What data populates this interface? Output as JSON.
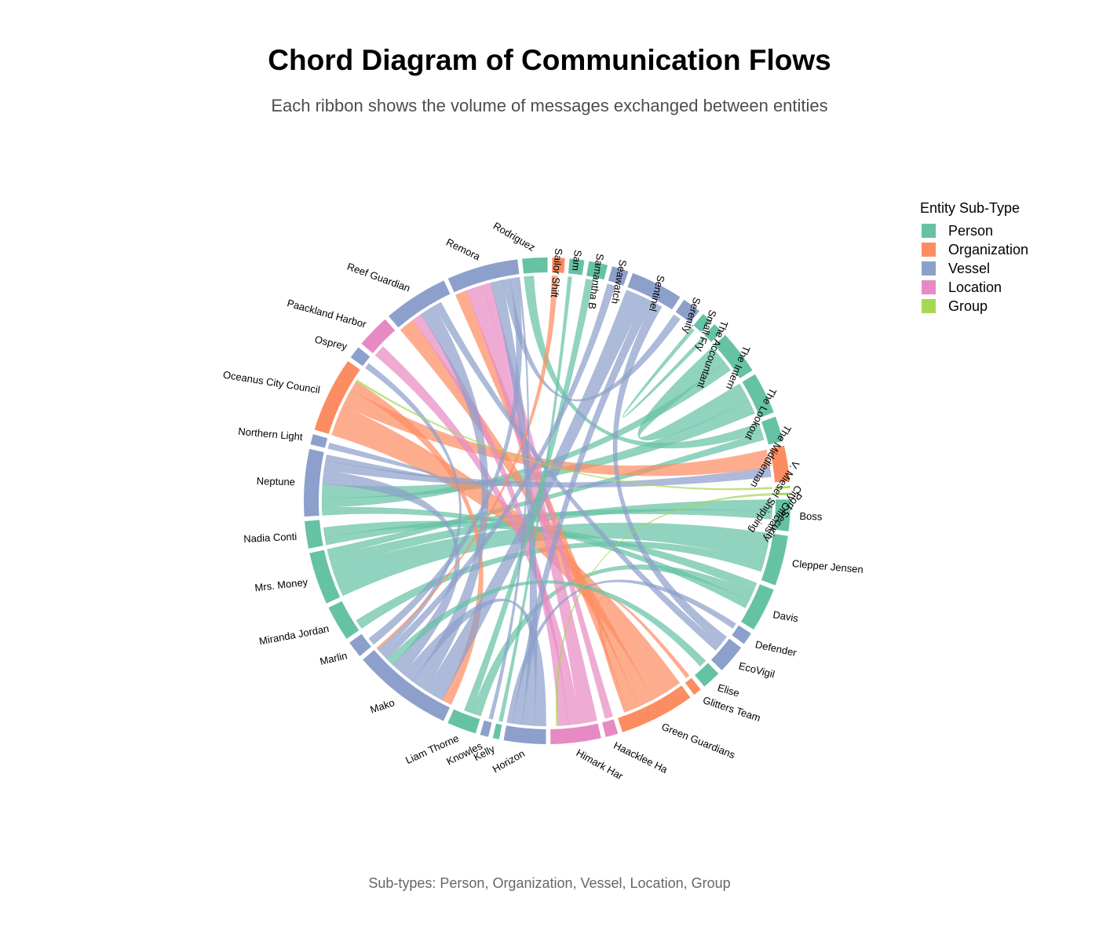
{
  "title": "Chord Diagram of Communication Flows",
  "subtitle": "Each ribbon shows the volume of messages exchanged between entities",
  "caption": "Sub-types: Person, Organization, Vessel, Location, Group",
  "legend": {
    "title": "Entity Sub-Type",
    "items": [
      {
        "label": "Person",
        "color": "#66C2A5"
      },
      {
        "label": "Organization",
        "color": "#FC8D62"
      },
      {
        "label": "Vessel",
        "color": "#8DA0CB"
      },
      {
        "label": "Location",
        "color": "#E78AC3"
      },
      {
        "label": "Group",
        "color": "#A6D854"
      }
    ]
  },
  "chart_data": {
    "type": "chord",
    "sectors": [
      {
        "name": "Boss",
        "type": "Person",
        "size": 1.5
      },
      {
        "name": "Clepper Jensen",
        "type": "Person",
        "size": 2.4
      },
      {
        "name": "Davis",
        "type": "Person",
        "size": 2.1
      },
      {
        "name": "Defender",
        "type": "Vessel",
        "size": 0.6
      },
      {
        "name": "EcoVigil",
        "type": "Vessel",
        "size": 1.4
      },
      {
        "name": "Elise",
        "type": "Person",
        "size": 0.9
      },
      {
        "name": "Glitters Team",
        "type": "Organization",
        "size": 0.4
      },
      {
        "name": "Green Guardians",
        "type": "Organization",
        "size": 3.6
      },
      {
        "name": "Haacklee Harbor",
        "display": "Haacklee Ha",
        "type": "Location",
        "size": 0.6
      },
      {
        "name": "Himark Harbor",
        "display": "Himark Har",
        "type": "Location",
        "size": 2.4
      },
      {
        "name": "Horizon",
        "type": "Vessel",
        "size": 2.0
      },
      {
        "name": "Kelly",
        "type": "Person",
        "size": 0.3
      },
      {
        "name": "Knowles",
        "type": "Vessel",
        "size": 0.4
      },
      {
        "name": "Liam Thorne",
        "type": "Person",
        "size": 1.4
      },
      {
        "name": "Mako",
        "type": "Vessel",
        "size": 4.8
      },
      {
        "name": "Marlin",
        "type": "Vessel",
        "size": 0.8
      },
      {
        "name": "Miranda Jordan",
        "type": "Person",
        "size": 1.7
      },
      {
        "name": "Mrs. Money",
        "type": "Person",
        "size": 2.5
      },
      {
        "name": "Nadia Conti",
        "type": "Person",
        "size": 1.3
      },
      {
        "name": "Neptune",
        "type": "Vessel",
        "size": 3.2
      },
      {
        "name": "Northern Light",
        "type": "Vessel",
        "size": 0.5
      },
      {
        "name": "Oceanus City Council",
        "type": "Organization",
        "size": 3.6
      },
      {
        "name": "Osprey",
        "type": "Vessel",
        "size": 0.6
      },
      {
        "name": "Paackland Harbor",
        "type": "Location",
        "size": 1.6
      },
      {
        "name": "Reef Guardian",
        "type": "Vessel",
        "size": 3.1
      },
      {
        "name": "Remora",
        "type": "Vessel",
        "size": 3.4
      },
      {
        "name": "Rodriguez",
        "type": "Person",
        "size": 1.2
      },
      {
        "name": "Sailor Shift",
        "type": "Organization",
        "size": 0.6
      },
      {
        "name": "Sam",
        "type": "Person",
        "size": 0.7
      },
      {
        "name": "Samantha B",
        "type": "Person",
        "size": 0.9
      },
      {
        "name": "Seawatch",
        "type": "Vessel",
        "size": 0.8
      },
      {
        "name": "Sentinel",
        "type": "Vessel",
        "size": 2.5
      },
      {
        "name": "Serenity",
        "type": "Vessel",
        "size": 0.9
      },
      {
        "name": "Small Fry",
        "type": "Person",
        "size": 0.5
      },
      {
        "name": "The Accountant",
        "type": "Person",
        "size": 0.5
      },
      {
        "name": "The Intern",
        "type": "Person",
        "size": 2.1
      },
      {
        "name": "The Lookout",
        "type": "Person",
        "size": 2.0
      },
      {
        "name": "The Middleman",
        "type": "Person",
        "size": 1.2
      },
      {
        "name": "V. Miesel Shipping",
        "type": "Organization",
        "size": 1.7
      },
      {
        "name": "City Officials",
        "type": "Group",
        "size": 0.1
      },
      {
        "name": "Port Security",
        "type": "Group",
        "size": 0.1
      }
    ],
    "links": [
      {
        "from": "Clepper Jensen",
        "to": "Mrs. Money",
        "value": 1.5
      },
      {
        "from": "Clepper Jensen",
        "to": "Miranda Jordan",
        "value": 0.5
      },
      {
        "from": "Boss",
        "to": "Mrs. Money",
        "value": 0.6
      },
      {
        "from": "Boss",
        "to": "Nadia Conti",
        "value": 0.4
      },
      {
        "from": "Davis",
        "to": "Nadia Conti",
        "value": 0.5
      },
      {
        "from": "Davis",
        "to": "Liam Thorne",
        "value": 0.5
      },
      {
        "from": "Davis",
        "to": "Neptune",
        "value": 0.4
      },
      {
        "from": "The Intern",
        "to": "The Lookout",
        "value": 1.0
      },
      {
        "from": "The Intern",
        "to": "Neptune",
        "value": 0.5
      },
      {
        "from": "The Lookout",
        "to": "Neptune",
        "value": 0.7
      },
      {
        "from": "The Middleman",
        "to": "Rodriguez",
        "value": 0.5
      },
      {
        "from": "The Middleman",
        "to": "Mrs. Money",
        "value": 0.4
      },
      {
        "from": "Green Guardians",
        "to": "Oceanus City Council",
        "value": 1.6
      },
      {
        "from": "Green Guardians",
        "to": "Reef Guardian",
        "value": 0.8
      },
      {
        "from": "Green Guardians",
        "to": "Remora",
        "value": 0.6
      },
      {
        "from": "Oceanus City Council",
        "to": "V. Miesel Shipping",
        "value": 0.9
      },
      {
        "from": "Oceanus City Council",
        "to": "Mako",
        "value": 0.5
      },
      {
        "from": "Himark Harbor",
        "to": "Remora",
        "value": 0.9
      },
      {
        "from": "Himark Harbor",
        "to": "Paackland Harbor",
        "value": 0.6
      },
      {
        "from": "Himark Harbor",
        "to": "Reef Guardian",
        "value": 0.5
      },
      {
        "from": "Haacklee Harbor",
        "to": "Remora",
        "value": 0.4
      },
      {
        "from": "Mako",
        "to": "Sentinel",
        "value": 1.0
      },
      {
        "from": "Mako",
        "to": "Reef Guardian",
        "value": 0.8
      },
      {
        "from": "Mako",
        "to": "Horizon",
        "value": 0.6
      },
      {
        "from": "Mako",
        "to": "Neptune",
        "value": 0.7
      },
      {
        "from": "Neptune",
        "to": "V. Miesel Shipping",
        "value": 0.5
      },
      {
        "from": "Horizon",
        "to": "Remora",
        "value": 0.6
      },
      {
        "from": "Horizon",
        "to": "Sentinel",
        "value": 0.5
      },
      {
        "from": "Samantha B",
        "to": "Liam Thorne",
        "value": 0.4
      },
      {
        "from": "Sam",
        "to": "Kelly",
        "value": 0.2
      },
      {
        "from": "EcoVigil",
        "to": "Sentinel",
        "value": 0.5
      },
      {
        "from": "EcoVigil",
        "to": "Reef Guardian",
        "value": 0.4
      },
      {
        "from": "Elise",
        "to": "Mako",
        "value": 0.4
      },
      {
        "from": "Seawatch",
        "to": "Mako",
        "value": 0.4
      },
      {
        "from": "Serenity",
        "to": "Remora",
        "value": 0.4
      },
      {
        "from": "Marlin",
        "to": "Remora",
        "value": 0.4
      },
      {
        "from": "Osprey",
        "to": "Mako",
        "value": 0.3
      },
      {
        "from": "Northern Light",
        "to": "Neptune",
        "value": 0.3
      },
      {
        "from": "Sailor Shift",
        "to": "Mako",
        "value": 0.3
      },
      {
        "from": "Glitters Team",
        "to": "Green Guardians",
        "value": 0.2
      },
      {
        "from": "Knowles",
        "to": "Remora",
        "value": 0.2
      },
      {
        "from": "Defender",
        "to": "Horizon",
        "value": 0.3
      },
      {
        "from": "Small Fry",
        "to": "The Accountant",
        "value": 0.2
      },
      {
        "from": "City Officials",
        "to": "Oceanus City Council",
        "value": 0.1
      },
      {
        "from": "Port Security",
        "to": "Himark Harbor",
        "value": 0.1
      }
    ]
  }
}
